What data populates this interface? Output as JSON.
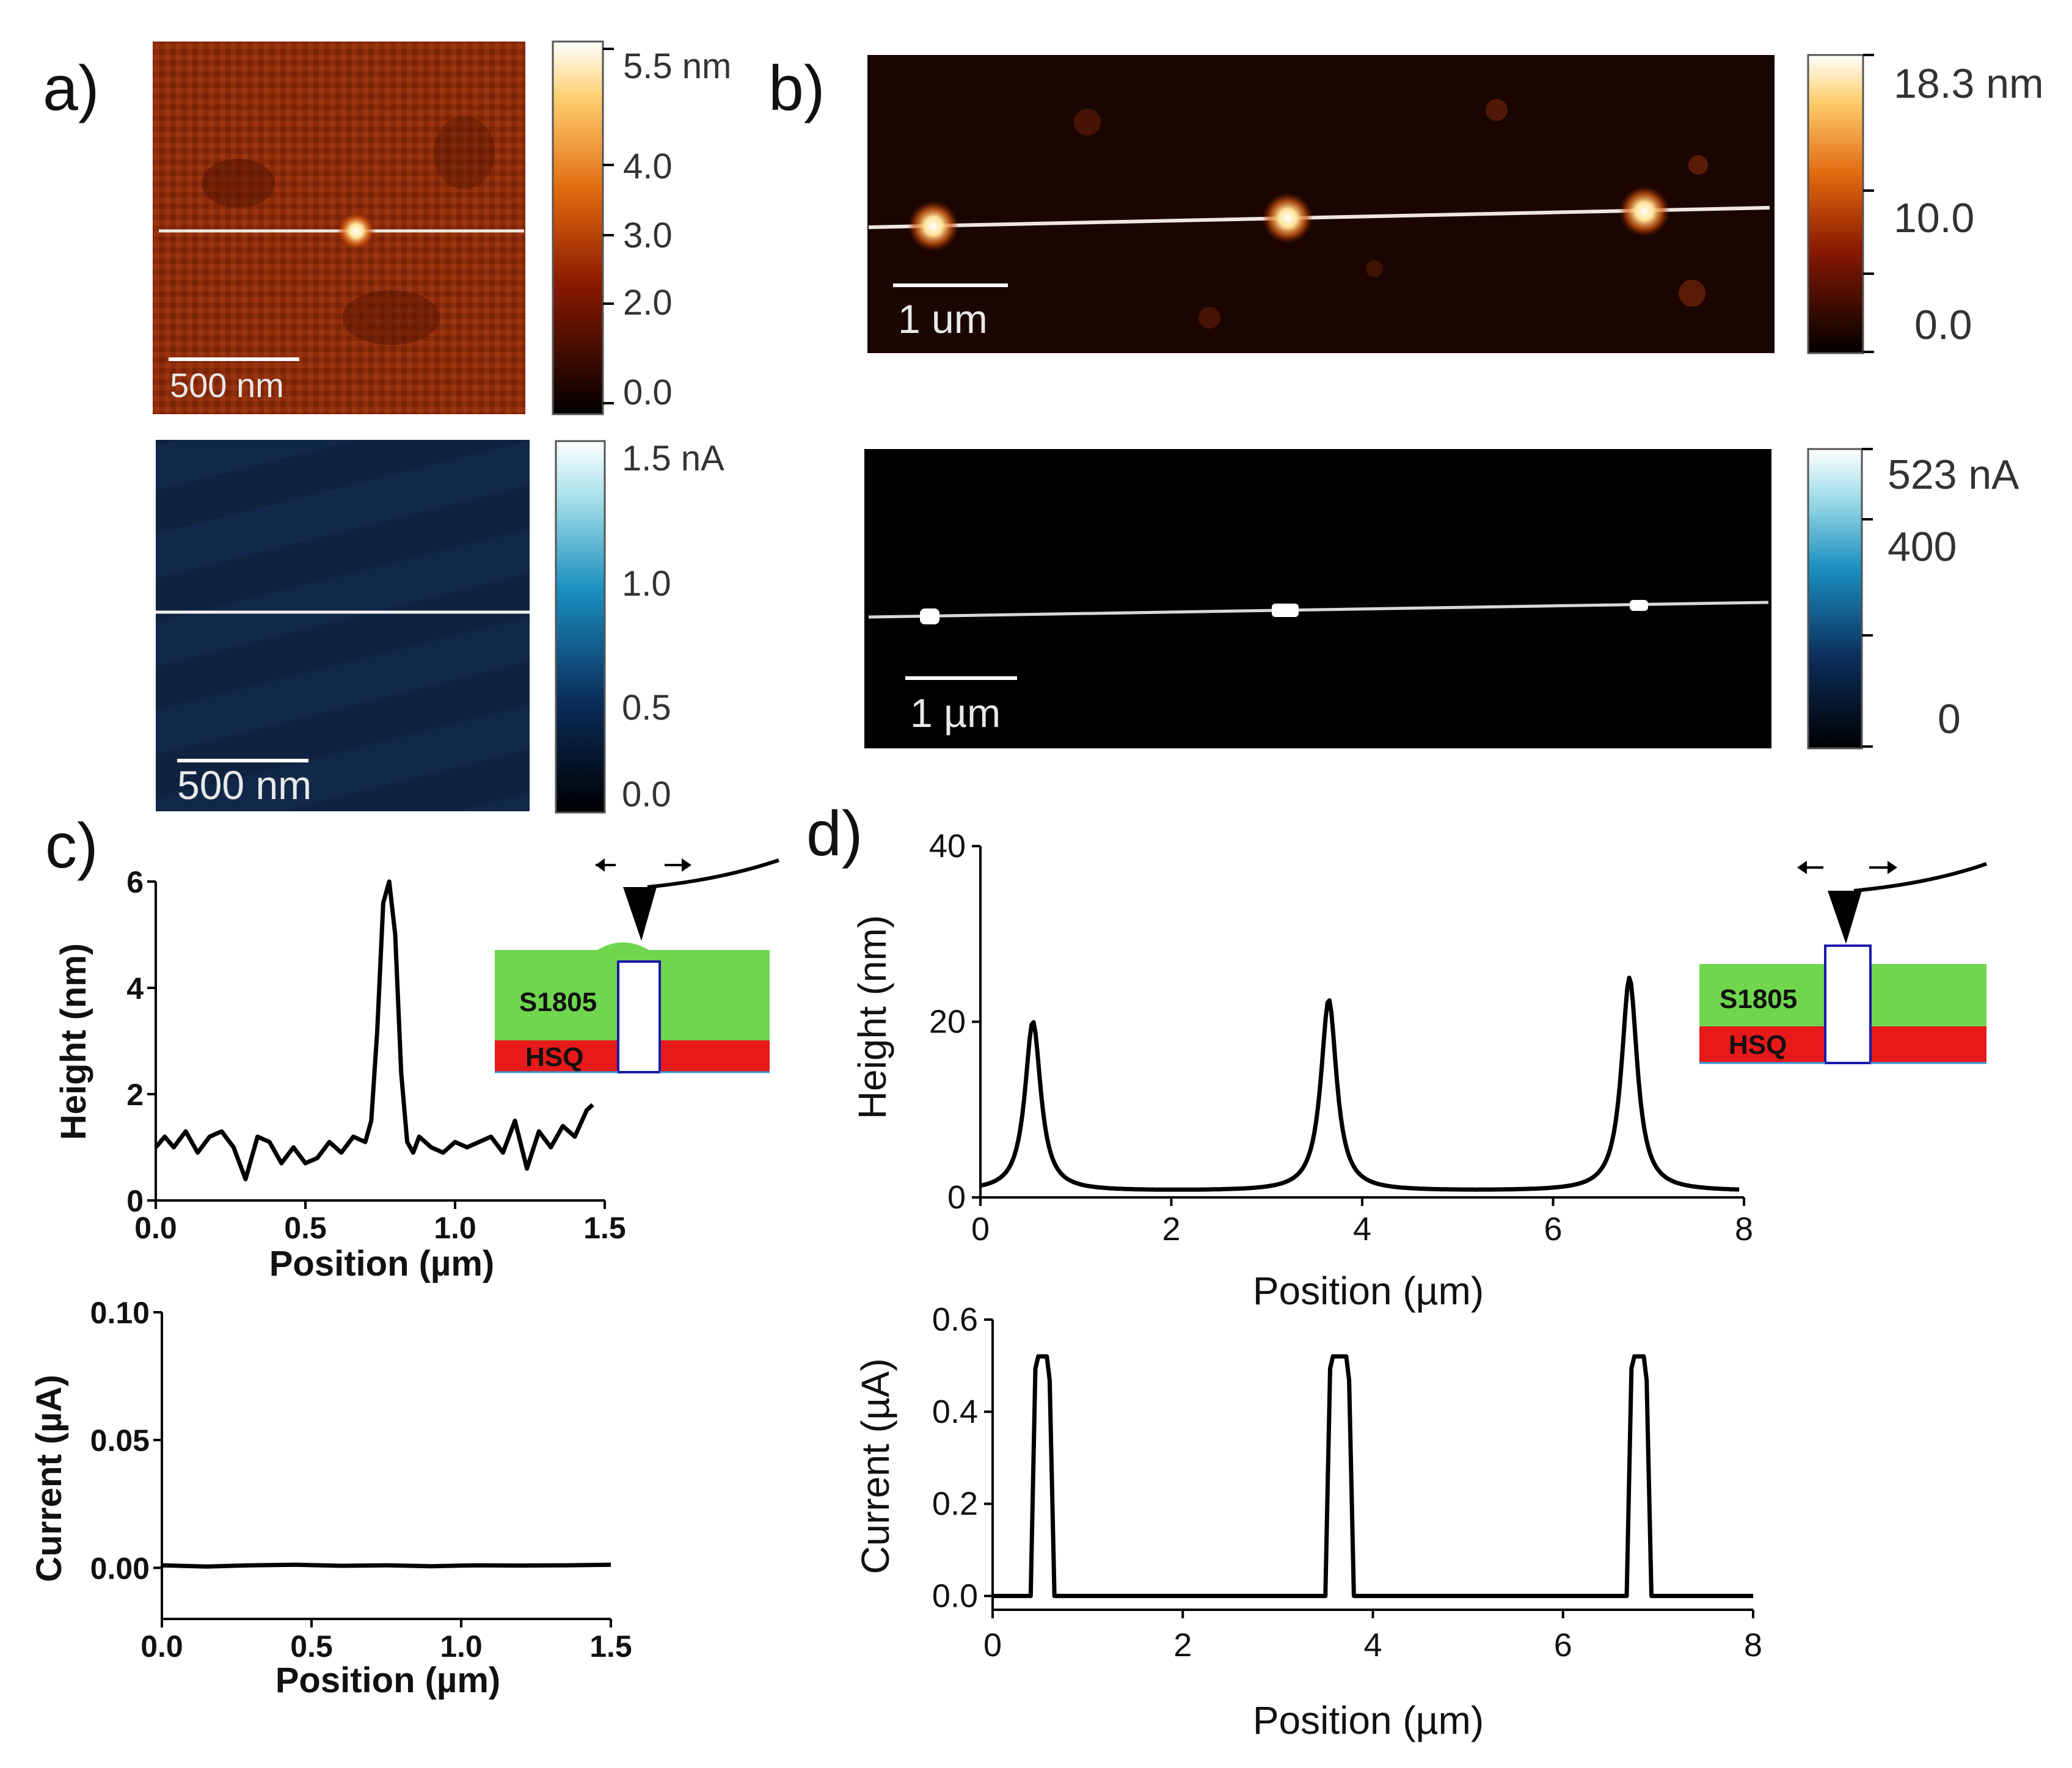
{
  "labels": {
    "a": "a)",
    "b": "b)",
    "c": "c)",
    "d": "d)"
  },
  "inset": {
    "layer_top": "S1805",
    "layer_bottom": "HSQ"
  },
  "afm_maps": {
    "a_height": {
      "scale_bar": "500 nm",
      "colorbar_ticks": [
        "5.5 nm",
        "4.0",
        "3.0",
        "2.0",
        "0.0"
      ]
    },
    "a_current": {
      "scale_bar": "500 nm",
      "colorbar_ticks": [
        "1.5 nA",
        "1.0",
        "0.5",
        "0.0"
      ]
    },
    "b_height": {
      "scale_bar": "1 um",
      "colorbar_ticks": [
        "18.3 nm",
        "10.0",
        "0.0"
      ]
    },
    "b_current": {
      "scale_bar": "1 µm",
      "colorbar_ticks": [
        "523 nA",
        "400",
        "0"
      ]
    }
  },
  "colors": {
    "afmhot_dark": "#1a0500",
    "afmhot_mid": "#8a2a0a",
    "current_bg": "#0f2540",
    "green": "#6fd64e",
    "red": "#e8191a"
  },
  "chart_data": [
    {
      "id": "c_height",
      "type": "line",
      "xlabel": "Position (µm)",
      "ylabel": "Height (nm)",
      "xlim": [
        0,
        1.5
      ],
      "ylim": [
        0,
        6
      ],
      "xticks": [
        "0.0",
        "0.5",
        "1.0",
        "1.5"
      ],
      "yticks": [
        "0",
        "2",
        "4",
        "6"
      ],
      "x": [
        0.0,
        0.03,
        0.06,
        0.1,
        0.14,
        0.18,
        0.22,
        0.26,
        0.3,
        0.34,
        0.38,
        0.42,
        0.46,
        0.5,
        0.54,
        0.58,
        0.62,
        0.66,
        0.7,
        0.72,
        0.74,
        0.76,
        0.78,
        0.8,
        0.82,
        0.84,
        0.86,
        0.88,
        0.92,
        0.96,
        1.0,
        1.04,
        1.08,
        1.12,
        1.16,
        1.2,
        1.24,
        1.28,
        1.32,
        1.36,
        1.4,
        1.44,
        1.46
      ],
      "y": [
        1.0,
        1.2,
        1.0,
        1.3,
        0.9,
        1.2,
        1.3,
        1.0,
        0.4,
        1.2,
        1.1,
        0.7,
        1.0,
        0.7,
        0.8,
        1.1,
        0.9,
        1.2,
        1.1,
        1.5,
        3.2,
        5.6,
        6.0,
        5.0,
        2.4,
        1.1,
        0.9,
        1.2,
        1.0,
        0.9,
        1.1,
        1.0,
        1.1,
        1.2,
        0.9,
        1.5,
        0.6,
        1.3,
        1.0,
        1.4,
        1.2,
        1.7,
        1.8
      ]
    },
    {
      "id": "c_current",
      "type": "line",
      "xlabel": "Position (µm)",
      "ylabel": "Current (µA)",
      "xlim": [
        0,
        1.5
      ],
      "ylim": [
        -0.02,
        0.1
      ],
      "xticks": [
        "0.0",
        "0.5",
        "1.0",
        "1.5"
      ],
      "yticks": [
        "0.00",
        "0.05",
        "0.10"
      ],
      "x": [
        0.0,
        0.15,
        0.3,
        0.45,
        0.6,
        0.75,
        0.9,
        1.05,
        1.2,
        1.35,
        1.5
      ],
      "y": [
        0.001,
        0.0005,
        0.001,
        0.0012,
        0.0008,
        0.001,
        0.0006,
        0.001,
        0.0009,
        0.001,
        0.0012
      ]
    },
    {
      "id": "d_height",
      "type": "line",
      "xlabel": "Position (µm)",
      "ylabel": "Height (nm)",
      "xlim": [
        0,
        8
      ],
      "ylim": [
        0,
        40
      ],
      "xticks": [
        "0",
        "2",
        "4",
        "6",
        "8"
      ],
      "yticks": [
        "0",
        "20",
        "40"
      ],
      "peaks": [
        {
          "center": 0.55,
          "height": 20
        },
        {
          "center": 3.65,
          "height": 22.5
        },
        {
          "center": 6.8,
          "height": 25
        }
      ],
      "baseline": 0.7,
      "peak_width": 0.1
    },
    {
      "id": "d_current",
      "type": "line",
      "xlabel": "Position (µm)",
      "ylabel": "Current (µA)",
      "xlim": [
        0,
        8
      ],
      "ylim": [
        -0.03,
        0.6
      ],
      "xticks": [
        "0",
        "2",
        "4",
        "6",
        "8"
      ],
      "yticks": [
        "0.0",
        "0.2",
        "0.4",
        "0.6"
      ],
      "plateaus": [
        {
          "start": 0.45,
          "end": 0.6,
          "value": 0.52
        },
        {
          "start": 3.55,
          "end": 3.75,
          "value": 0.52
        },
        {
          "start": 6.72,
          "end": 6.88,
          "value": 0.52
        }
      ]
    }
  ]
}
